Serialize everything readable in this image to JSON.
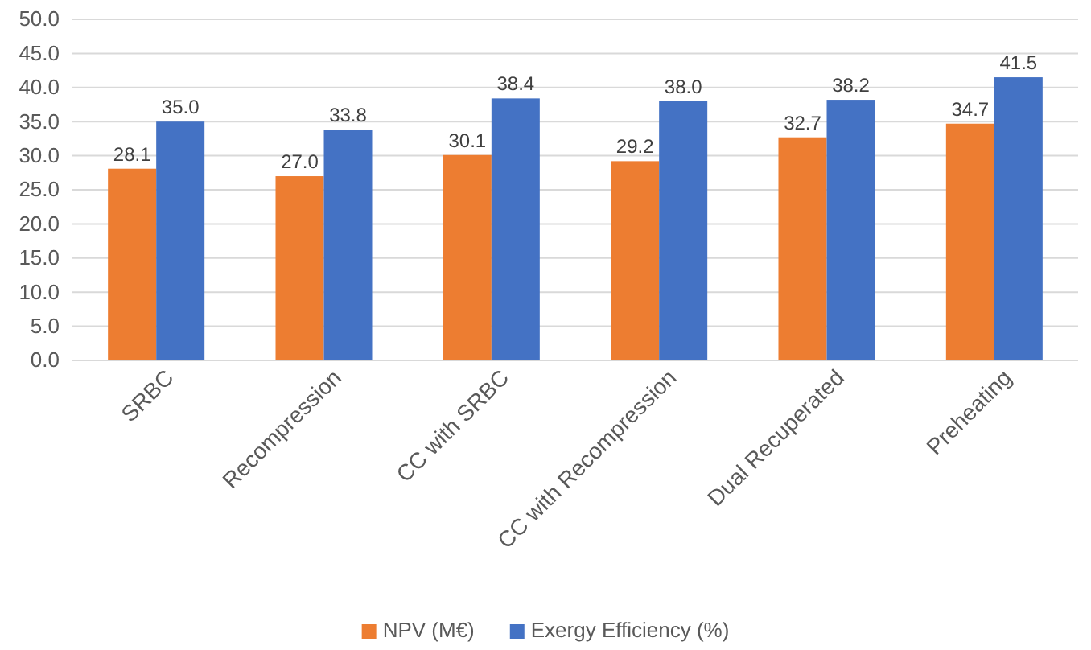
{
  "chart_data": {
    "type": "bar",
    "categories": [
      "SRBC",
      "Recompression",
      "CC with SRBC",
      "CC with Recompression",
      "Dual Recuperated",
      "Preheating"
    ],
    "series": [
      {
        "name": "NPV (M€)",
        "color": "#ed7d31",
        "values": [
          28.1,
          27.0,
          30.1,
          29.2,
          32.7,
          34.7
        ],
        "value_labels": [
          "28.1",
          "27.0",
          "30.1",
          "29.2",
          "32.7",
          "34.7"
        ]
      },
      {
        "name": "Exergy Efficiency (%)",
        "color": "#4472c4",
        "values": [
          35.0,
          33.8,
          38.4,
          38.0,
          38.2,
          41.5
        ],
        "value_labels": [
          "35.0",
          "33.8",
          "38.4",
          "38.0",
          "38.2",
          "41.5"
        ]
      }
    ],
    "ylim": [
      0,
      50
    ],
    "yticks": [
      {
        "value": 0,
        "label": "0.0"
      },
      {
        "value": 5,
        "label": "5.0"
      },
      {
        "value": 10,
        "label": "10.0"
      },
      {
        "value": 15,
        "label": "15.0"
      },
      {
        "value": 20,
        "label": "20.0"
      },
      {
        "value": 25,
        "label": "25.0"
      },
      {
        "value": 30,
        "label": "30.0"
      },
      {
        "value": 35,
        "label": "35.0"
      },
      {
        "value": 40,
        "label": "40.0"
      },
      {
        "value": 45,
        "label": "45.0"
      },
      {
        "value": 50,
        "label": "50.0"
      }
    ],
    "grid": "y",
    "legend": "bottom"
  }
}
